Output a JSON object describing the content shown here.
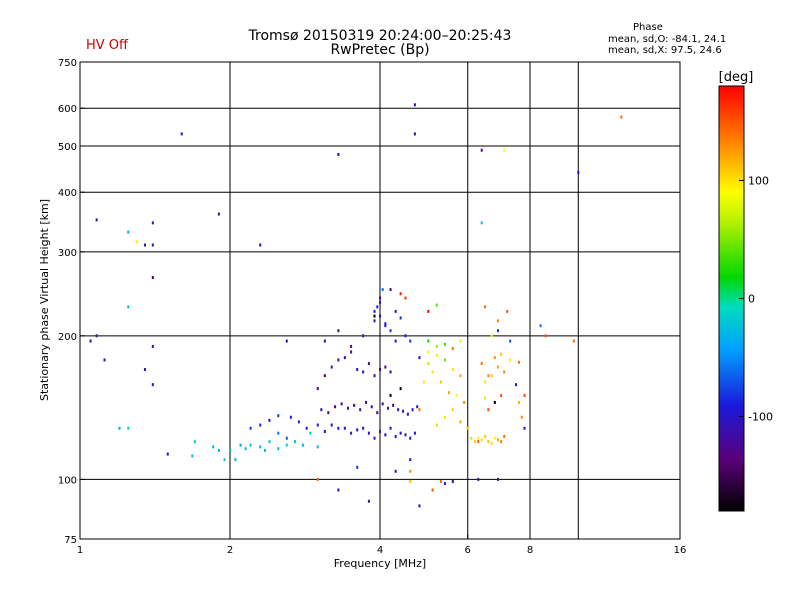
{
  "header": {
    "title_line1": "Tromsø 20150319 20:24:00–20:25:43",
    "title_line2": "RwPretec (Bp)",
    "hv_status": "HV Off",
    "phase_title": "Phase",
    "phase_mean_o": "mean, sd,O: -84.1, 24.1",
    "phase_mean_x": "mean, sd,X:  97.5, 24.6"
  },
  "colors": {
    "hv_status": "#d00000",
    "grid": "#000000"
  },
  "chart_data": {
    "type": "scatter",
    "title": "Tromsø 20150319 20:24:00–20:25:43",
    "subtitle": "RwPretec (Bp)",
    "xlabel": "Frequency [MHz]",
    "ylabel": "Stationary phase Virtual Height [km]",
    "xscale": "log",
    "yscale": "log",
    "xlim": [
      1,
      16
    ],
    "ylim": [
      75,
      750
    ],
    "x_ticks": [
      1,
      2,
      4,
      6,
      8,
      16
    ],
    "x_grid": [
      2,
      4,
      6,
      8,
      10
    ],
    "y_ticks": [
      75,
      100,
      200,
      300,
      400,
      500,
      600,
      750
    ],
    "y_grid": [
      100,
      200,
      300,
      400,
      500,
      600
    ],
    "grid": true,
    "colorbar": {
      "label": "[deg]",
      "range": [
        -180,
        180
      ],
      "ticks": [
        -100,
        0,
        100
      ],
      "colormap": "rainbow"
    },
    "series": [
      {
        "points_x": [
          1.05,
          1.12,
          1.2,
          1.25,
          1.25,
          1.35,
          1.4,
          1.4,
          1.6,
          1.9,
          2.3,
          3.3,
          4.7,
          4.7,
          6.4,
          6.4,
          7.1,
          10.0,
          12.2,
          1.08,
          1.35,
          1.3,
          1.4,
          1.4,
          1.25,
          1.08,
          1.4,
          1.5,
          1.7,
          1.68,
          1.85,
          1.9,
          2.0,
          2.05,
          1.95,
          2.1,
          2.15,
          2.2,
          2.3,
          2.35,
          2.4,
          2.5,
          2.6,
          2.7,
          2.8,
          2.9,
          3.0,
          2.5,
          2.6,
          2.2,
          2.3,
          2.4,
          2.5,
          2.65,
          2.75,
          2.85,
          3.0,
          3.1,
          3.2,
          3.3,
          3.4,
          3.5,
          3.6,
          3.7,
          3.8,
          3.9,
          4.0,
          4.1,
          4.2,
          4.3,
          4.4,
          4.5,
          4.6,
          4.7,
          3.05,
          3.15,
          3.25,
          3.35,
          3.45,
          3.55,
          3.65,
          3.75,
          3.85,
          3.95,
          4.05,
          4.15,
          4.25,
          4.35,
          4.45,
          4.55,
          4.65,
          4.75,
          3.0,
          3.1,
          3.2,
          3.3,
          3.4,
          3.5,
          3.6,
          3.7,
          3.8,
          3.9,
          4.0,
          4.1,
          4.2,
          3.1,
          3.3,
          3.5,
          3.7,
          3.9,
          4.1,
          4.3,
          3.9,
          4.0,
          4.05,
          3.95,
          4.0,
          4.1,
          4.2,
          4.3,
          4.4,
          4.5,
          4.6,
          4.8,
          5.0,
          5.2,
          5.4,
          5.6,
          5.8,
          4.9,
          5.1,
          5.3,
          5.5,
          5.7,
          5.9,
          4.8,
          5.0,
          5.2,
          5.4,
          5.6,
          5.8,
          5.0,
          5.2,
          5.4,
          5.6,
          5.8,
          6.0,
          6.1,
          6.2,
          6.3,
          6.4,
          6.5,
          6.6,
          6.7,
          6.8,
          6.9,
          7.0,
          7.1,
          6.3,
          6.5,
          6.7,
          6.9,
          7.1,
          6.4,
          6.6,
          6.8,
          7.0,
          6.5,
          6.7,
          6.9,
          7.2,
          6.5,
          6.8,
          7.0,
          7.3,
          7.6,
          7.8,
          7.6,
          7.7,
          7.8,
          7.5,
          6.6,
          6.9,
          7.3,
          8.4,
          8.6,
          9.8,
          2.6,
          3.0,
          3.3,
          3.6,
          4.3,
          4.6,
          4.6,
          5.1,
          5.3,
          5.4,
          5.6,
          6.3,
          6.9,
          4.6,
          4.8,
          3.8,
          4.0,
          4.2,
          4.4,
          4.5,
          5.0,
          5.2,
          3.9,
          4.2,
          4.4,
          6.8
        ],
        "points_y": [
          195,
          178,
          128,
          128,
          230,
          170,
          158,
          265,
          530,
          360,
          310,
          480,
          610,
          530,
          490,
          345,
          490,
          440,
          575,
          350,
          310,
          315,
          345,
          310,
          330,
          200,
          190,
          113,
          120,
          112,
          117,
          115,
          115,
          110,
          110,
          118,
          116,
          118,
          117,
          115,
          120,
          116,
          118,
          120,
          118,
          125,
          117,
          125,
          122,
          128,
          130,
          133,
          136,
          135,
          132,
          128,
          130,
          126,
          130,
          128,
          128,
          125,
          127,
          128,
          125,
          122,
          126,
          124,
          128,
          123,
          125,
          124,
          122,
          125,
          140,
          138,
          142,
          144,
          141,
          143,
          140,
          145,
          142,
          138,
          144,
          141,
          143,
          140,
          139,
          137,
          140,
          142,
          155,
          165,
          172,
          178,
          180,
          185,
          170,
          168,
          175,
          165,
          170,
          172,
          168,
          195,
          205,
          190,
          200,
          215,
          210,
          195,
          225,
          240,
          250,
          230,
          220,
          212,
          205,
          225,
          218,
          200,
          195,
          180,
          175,
          182,
          178,
          170,
          165,
          160,
          168,
          160,
          152,
          150,
          145,
          140,
          195,
          190,
          192,
          188,
          195,
          185,
          130,
          135,
          140,
          132,
          128,
          122,
          120,
          122,
          121,
          123,
          120,
          119,
          122,
          121,
          120,
          123,
          120,
          160,
          165,
          172,
          168,
          175,
          140,
          145,
          150,
          148,
          200,
          215,
          225,
          230,
          180,
          183,
          178,
          176,
          150,
          145,
          135,
          128,
          158,
          165,
          205,
          195,
          210,
          200,
          195,
          195,
          100,
          95,
          106,
          104,
          104,
          99,
          95,
          99,
          98,
          99,
          100,
          100,
          110,
          88,
          90,
          235,
          250,
          245,
          240,
          225,
          232,
          220,
          150,
          155,
          145,
          110
        ],
        "points_phase": [
          -110,
          -105,
          -30,
          -5,
          -25,
          -110,
          -105,
          -140,
          -90,
          -115,
          -125,
          -110,
          -120,
          -110,
          -120,
          -25,
          90,
          -90,
          140,
          -110,
          -105,
          95,
          -110,
          -115,
          -35,
          -110,
          -110,
          -90,
          -5,
          -20,
          -20,
          -30,
          -20,
          -25,
          -15,
          -40,
          -30,
          -20,
          -30,
          -30,
          -20,
          -25,
          -15,
          -25,
          -30,
          -20,
          -30,
          -60,
          -70,
          -80,
          -85,
          -95,
          -80,
          -90,
          -85,
          -90,
          -95,
          -100,
          -100,
          -95,
          -100,
          -90,
          -110,
          -105,
          -95,
          -100,
          -110,
          -100,
          -95,
          -100,
          -105,
          -110,
          -100,
          -95,
          -110,
          -120,
          -130,
          -120,
          -115,
          -125,
          -120,
          -110,
          -115,
          -120,
          -110,
          -115,
          -120,
          -110,
          -105,
          -100,
          -95,
          -90,
          -130,
          -140,
          -120,
          -125,
          -130,
          -135,
          -110,
          -115,
          -120,
          -115,
          -120,
          -125,
          -110,
          -120,
          -115,
          -120,
          -110,
          -100,
          -90,
          -105,
          -95,
          -100,
          -60,
          -85,
          -90,
          -95,
          -80,
          -100,
          -85,
          -90,
          -80,
          -100,
          70,
          80,
          50,
          100,
          120,
          95,
          100,
          110,
          120,
          90,
          130,
          140,
          20,
          60,
          30,
          140,
          100,
          90,
          105,
          100,
          110,
          120,
          115,
          105,
          110,
          95,
          100,
          108,
          112,
          100,
          95,
          120,
          130,
          140,
          150,
          100,
          110,
          120,
          130,
          140,
          150,
          110,
          150,
          100,
          90,
          130,
          150,
          140,
          130,
          110,
          95,
          140,
          150,
          120,
          130,
          -90,
          -90,
          130,
          -80,
          -70,
          -60,
          150,
          140,
          -110,
          145,
          -100,
          -80,
          -100,
          130,
          110,
          150,
          140,
          -90,
          -110,
          -100,
          -120,
          -110,
          -120,
          -110,
          -100,
          -120,
          170,
          160,
          175,
          40
        ],
        "values_note": "x in MHz, y in km, color = phase in degrees"
      }
    ]
  }
}
